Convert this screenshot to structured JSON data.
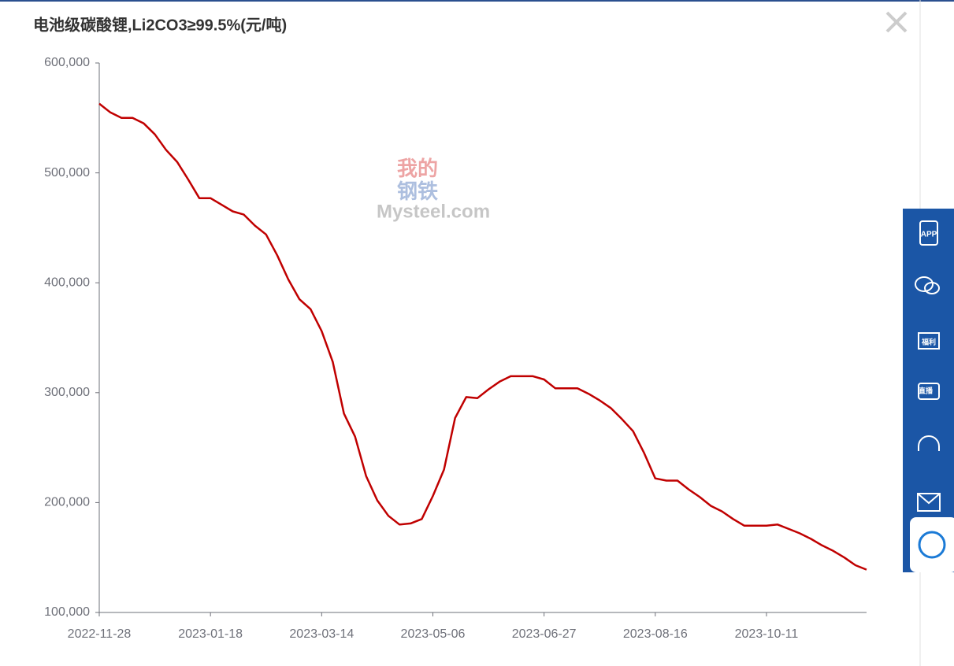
{
  "chart_data": {
    "type": "line",
    "title": "电池级碳酸锂,Li2CO3≥99.5%(元/吨)",
    "watermark": [
      "我的",
      "钢铁",
      "Mysteel.com"
    ],
    "color": "#c00000",
    "categories": [
      "2022-11-28",
      null,
      null,
      null,
      null,
      null,
      null,
      null,
      null,
      null,
      "2023-01-18",
      null,
      null,
      null,
      null,
      null,
      null,
      null,
      null,
      null,
      "2023-03-14",
      null,
      null,
      null,
      null,
      null,
      null,
      null,
      null,
      null,
      "2023-05-06",
      null,
      null,
      null,
      null,
      null,
      null,
      null,
      null,
      null,
      "2023-06-27",
      null,
      null,
      null,
      null,
      null,
      null,
      null,
      null,
      null,
      "2023-08-16",
      null,
      null,
      null,
      null,
      null,
      null,
      null,
      null,
      null,
      "2023-10-11",
      null,
      null,
      null,
      null,
      null,
      null,
      null,
      null,
      null
    ],
    "values": [
      563000,
      555000,
      550000,
      550000,
      545000,
      535000,
      521000,
      510000,
      494000,
      477000,
      477000,
      471000,
      465000,
      462000,
      452000,
      444000,
      425000,
      403000,
      385000,
      376000,
      356000,
      328000,
      281000,
      260000,
      224000,
      202000,
      188000,
      180000,
      181000,
      185000,
      206000,
      230000,
      277000,
      296000,
      295000,
      303000,
      310000,
      315000,
      315000,
      315000,
      312000,
      304000,
      304000,
      304000,
      299000,
      293000,
      286000,
      276000,
      265000,
      245000,
      222000,
      220000,
      220000,
      212000,
      205000,
      197000,
      192000,
      185000,
      179000,
      179000,
      179000,
      180000,
      176000,
      172000,
      167000,
      161000,
      156000,
      150000,
      143000,
      139000
    ],
    "ylim": [
      100000,
      600000
    ],
    "yticks": [
      {
        "value": 100000,
        "label": "100,000"
      },
      {
        "value": 200000,
        "label": "200,000"
      },
      {
        "value": 300000,
        "label": "300,000"
      },
      {
        "value": 400000,
        "label": "400,000"
      },
      {
        "value": 500000,
        "label": "500,000"
      },
      {
        "value": 600000,
        "label": "600,000"
      }
    ],
    "grid": false
  },
  "sidebar": [
    "APP",
    "福利",
    "直播"
  ]
}
